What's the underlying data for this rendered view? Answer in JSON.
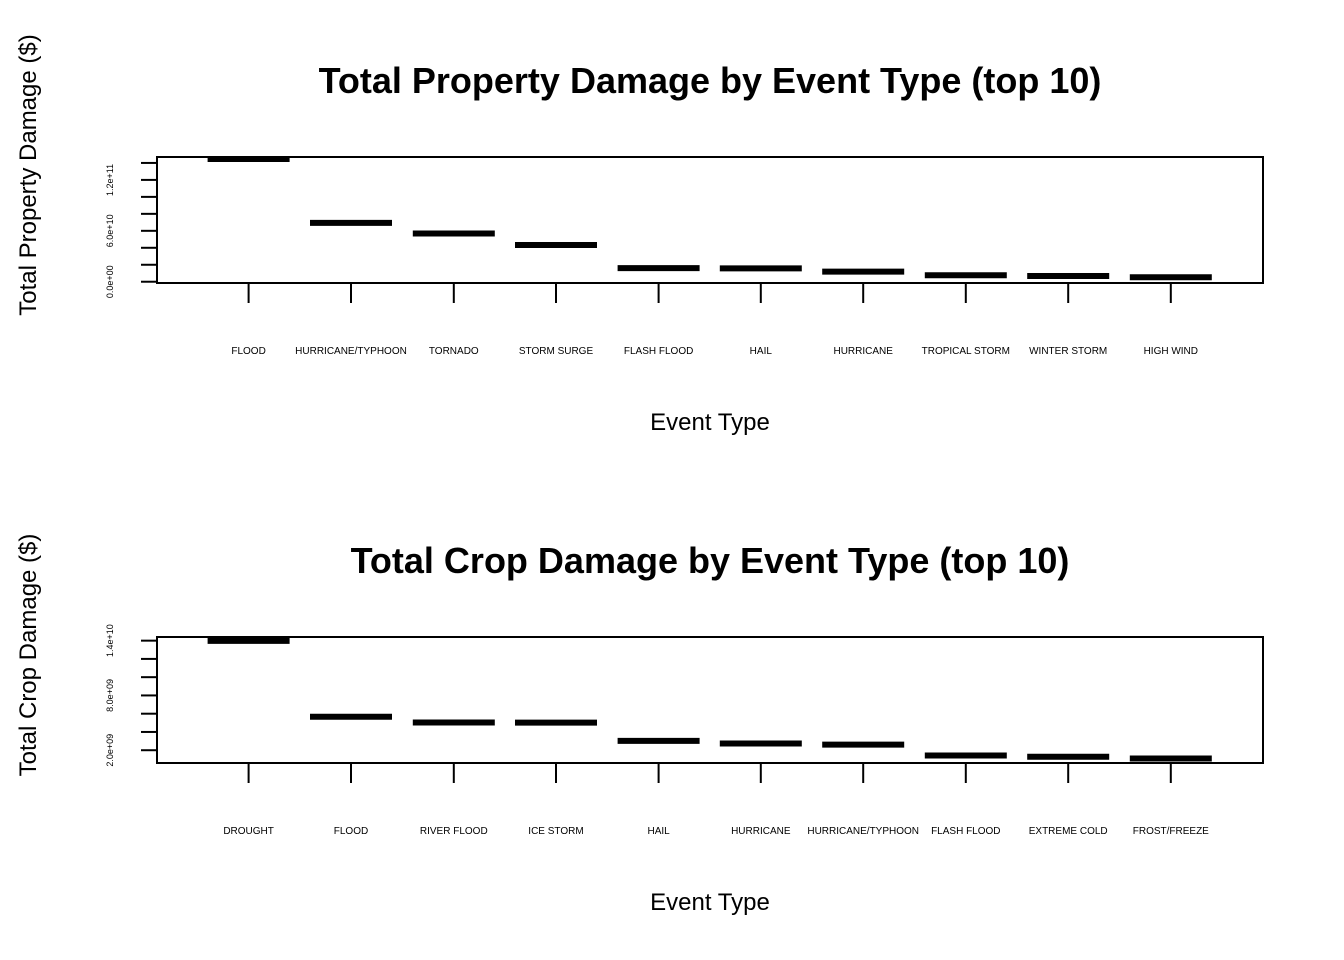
{
  "chart_data": [
    {
      "type": "bar",
      "title": "Total Property Damage by Event Type (top 10)",
      "xlabel": "Event Type",
      "ylabel": "Total Property Damage ($)",
      "categories": [
        "FLOOD",
        "HURRICANE/TYPHOON",
        "TORNADO",
        "STORM SURGE",
        "FLASH FLOOD",
        "HAIL",
        "HURRICANE",
        "TROPICAL STORM",
        "WINTER STORM",
        "HIGH WIND"
      ],
      "values": [
        144700000000,
        69300000000,
        56900000000,
        43300000000,
        16100000000,
        15700000000,
        11900000000,
        7700000000,
        6700000000,
        5300000000
      ],
      "ylim": [
        -1500000000,
        147000000000
      ],
      "yticks": [
        0,
        20000000000,
        40000000000,
        60000000000,
        80000000000,
        100000000000,
        120000000000,
        140000000000
      ],
      "ytick_labels": [
        "0.0e+00",
        "6.0e+10",
        "1.2e+11"
      ],
      "ytick_label_values": [
        0,
        60000000000,
        120000000000
      ]
    },
    {
      "type": "bar",
      "title": "Total Crop Damage by Event Type (top 10)",
      "xlabel": "Event Type",
      "ylabel": "Total Crop Damage ($)",
      "categories": [
        "DROUGHT",
        "FLOOD",
        "RIVER FLOOD",
        "ICE STORM",
        "HAIL",
        "HURRICANE",
        "HURRICANE/TYPHOON",
        "FLASH FLOOD",
        "EXTREME COLD",
        "FROST/FREEZE"
      ],
      "values": [
        13970000000,
        5660000000,
        5030000000,
        5020000000,
        3030000000,
        2740000000,
        2610000000,
        1420000000,
        1290000000,
        1090000000
      ],
      "ylim": [
        600000000,
        14400000000
      ],
      "yticks": [
        2000000000,
        4000000000,
        6000000000,
        8000000000,
        10000000000,
        12000000000,
        14000000000
      ],
      "ytick_labels": [
        "2.0e+09",
        "8.0e+09",
        "1.4e+10"
      ],
      "ytick_label_values": [
        2000000000,
        8000000000,
        14000000000
      ]
    }
  ]
}
